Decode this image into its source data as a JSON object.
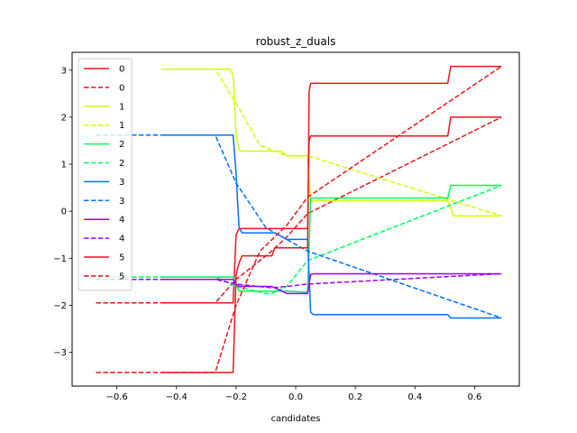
{
  "chart_data": {
    "type": "line",
    "title": "robust_z_duals",
    "xlabel": "candidates",
    "ylabel": "",
    "xlim": [
      -0.75,
      0.75
    ],
    "ylim": [
      -3.72,
      3.38
    ],
    "xticks": [
      -0.6,
      -0.4,
      -0.2,
      0.0,
      0.2,
      0.4,
      0.6
    ],
    "xtick_labels": [
      "−0.6",
      "−0.4",
      "−0.2",
      "0.0",
      "0.2",
      "0.4",
      "0.6"
    ],
    "yticks": [
      -3,
      -2,
      -1,
      0,
      1,
      2,
      3
    ],
    "ytick_labels": [
      "−3",
      "−2",
      "−1",
      "0",
      "1",
      "2",
      "3"
    ],
    "grid": false,
    "legend_position": "upper-left",
    "series": [
      {
        "name": "0",
        "color": "#e8141e",
        "style": "solid",
        "points": [
          [
            -0.45,
            -1.95
          ],
          [
            -0.21,
            -1.95
          ],
          [
            -0.2,
            -0.5
          ],
          [
            -0.19,
            -0.37
          ],
          [
            -0.08,
            -0.37
          ],
          [
            -0.03,
            -0.37
          ],
          [
            0.03,
            -0.37
          ],
          [
            0.04,
            -0.37
          ],
          [
            0.045,
            1.5
          ],
          [
            0.05,
            1.6
          ],
          [
            0.055,
            1.6
          ],
          [
            0.3,
            1.6
          ],
          [
            0.51,
            1.6
          ],
          [
            0.52,
            2.0
          ],
          [
            0.69,
            2.0
          ]
        ]
      },
      {
        "name": "0",
        "color": "#e8141e",
        "style": "dashed",
        "points": [
          [
            -0.67,
            -1.95
          ],
          [
            -0.27,
            -1.95
          ],
          [
            -0.2,
            -1.45
          ],
          [
            -0.09,
            -0.9
          ],
          [
            -0.03,
            -0.55
          ],
          [
            0.04,
            -0.05
          ],
          [
            0.69,
            2.0
          ]
        ]
      },
      {
        "name": "1",
        "color": "#d2ff00",
        "style": "solid",
        "points": [
          [
            -0.45,
            3.02
          ],
          [
            -0.22,
            3.02
          ],
          [
            -0.21,
            2.9
          ],
          [
            -0.2,
            1.6
          ],
          [
            -0.19,
            1.3
          ],
          [
            -0.18,
            1.28
          ],
          [
            -0.05,
            1.28
          ],
          [
            -0.03,
            1.18
          ],
          [
            0.03,
            1.18
          ],
          [
            0.04,
            1.18
          ],
          [
            0.05,
            0.22
          ],
          [
            0.06,
            0.22
          ],
          [
            0.3,
            0.22
          ],
          [
            0.51,
            0.22
          ],
          [
            0.53,
            -0.1
          ],
          [
            0.69,
            -0.1
          ]
        ]
      },
      {
        "name": "1",
        "color": "#d2ff00",
        "style": "dashed",
        "points": [
          [
            -0.45,
            3.02
          ],
          [
            -0.27,
            3.02
          ],
          [
            -0.2,
            2.3
          ],
          [
            -0.12,
            1.4
          ],
          [
            -0.03,
            1.18
          ],
          [
            0.04,
            1.18
          ],
          [
            0.69,
            -0.1
          ]
        ]
      },
      {
        "name": "2",
        "color": "#00ff58",
        "style": "solid",
        "points": [
          [
            -0.45,
            -1.4
          ],
          [
            -0.21,
            -1.4
          ],
          [
            -0.2,
            -1.55
          ],
          [
            -0.19,
            -1.7
          ],
          [
            -0.08,
            -1.7
          ],
          [
            -0.03,
            -1.7
          ],
          [
            0.03,
            -1.72
          ],
          [
            0.04,
            -1.72
          ],
          [
            0.05,
            0.28
          ],
          [
            0.06,
            0.28
          ],
          [
            0.3,
            0.28
          ],
          [
            0.51,
            0.28
          ],
          [
            0.52,
            0.55
          ],
          [
            0.69,
            0.55
          ]
        ]
      },
      {
        "name": "2",
        "color": "#00ff58",
        "style": "dashed",
        "points": [
          [
            -0.67,
            -1.4
          ],
          [
            -0.27,
            -1.4
          ],
          [
            -0.2,
            -1.6
          ],
          [
            -0.1,
            -1.75
          ],
          [
            -0.08,
            -1.75
          ],
          [
            -0.03,
            -1.6
          ],
          [
            0.04,
            -1.05
          ],
          [
            0.69,
            0.55
          ]
        ]
      },
      {
        "name": "3",
        "color": "#0070ff",
        "style": "solid",
        "points": [
          [
            -0.45,
            1.62
          ],
          [
            -0.21,
            1.62
          ],
          [
            -0.2,
            0.8
          ],
          [
            -0.19,
            -0.35
          ],
          [
            -0.18,
            -0.46
          ],
          [
            -0.07,
            -0.46
          ],
          [
            -0.03,
            -0.6
          ],
          [
            0.03,
            -0.6
          ],
          [
            0.04,
            -0.6
          ],
          [
            0.05,
            -2.15
          ],
          [
            0.06,
            -2.2
          ],
          [
            0.3,
            -2.2
          ],
          [
            0.51,
            -2.2
          ],
          [
            0.52,
            -2.27
          ],
          [
            0.69,
            -2.27
          ]
        ]
      },
      {
        "name": "3",
        "color": "#0070ff",
        "style": "dashed",
        "points": [
          [
            -0.67,
            1.62
          ],
          [
            -0.27,
            1.62
          ],
          [
            -0.2,
            0.6
          ],
          [
            -0.1,
            -0.35
          ],
          [
            -0.03,
            -0.6
          ],
          [
            0.04,
            -0.85
          ],
          [
            0.69,
            -2.27
          ]
        ]
      },
      {
        "name": "4",
        "color": "#9b00ff",
        "style": "solid",
        "points": [
          [
            -0.45,
            -1.45
          ],
          [
            -0.21,
            -1.45
          ],
          [
            -0.2,
            -1.55
          ],
          [
            -0.19,
            -1.6
          ],
          [
            -0.08,
            -1.6
          ],
          [
            -0.03,
            -1.75
          ],
          [
            0.03,
            -1.75
          ],
          [
            0.04,
            -1.75
          ],
          [
            0.05,
            -1.35
          ],
          [
            0.06,
            -1.33
          ],
          [
            0.3,
            -1.33
          ],
          [
            0.51,
            -1.33
          ],
          [
            0.69,
            -1.33
          ]
        ]
      },
      {
        "name": "4",
        "color": "#9b00ff",
        "style": "dashed",
        "points": [
          [
            -0.67,
            -1.45
          ],
          [
            -0.27,
            -1.45
          ],
          [
            -0.2,
            -1.55
          ],
          [
            -0.08,
            -1.63
          ],
          [
            -0.03,
            -1.6
          ],
          [
            0.04,
            -1.55
          ],
          [
            0.69,
            -1.33
          ]
        ]
      },
      {
        "name": "5",
        "color": "#e8141e",
        "style": "solid",
        "points": [
          [
            -0.45,
            -3.43
          ],
          [
            -0.21,
            -3.43
          ],
          [
            -0.2,
            -1.35
          ],
          [
            -0.19,
            -1.1
          ],
          [
            -0.18,
            -0.95
          ],
          [
            -0.08,
            -0.95
          ],
          [
            -0.07,
            -0.78
          ],
          [
            -0.03,
            -0.78
          ],
          [
            0.03,
            -0.78
          ],
          [
            0.04,
            -0.78
          ],
          [
            0.045,
            2.55
          ],
          [
            0.05,
            2.72
          ],
          [
            0.3,
            2.72
          ],
          [
            0.51,
            2.72
          ],
          [
            0.52,
            3.08
          ],
          [
            0.69,
            3.08
          ]
        ]
      },
      {
        "name": "5",
        "color": "#e8141e",
        "style": "dashed",
        "points": [
          [
            -0.67,
            -3.43
          ],
          [
            -0.27,
            -3.43
          ],
          [
            -0.2,
            -2.0
          ],
          [
            -0.12,
            -0.85
          ],
          [
            -0.03,
            -0.3
          ],
          [
            0.04,
            0.3
          ],
          [
            0.69,
            3.08
          ]
        ]
      }
    ]
  }
}
